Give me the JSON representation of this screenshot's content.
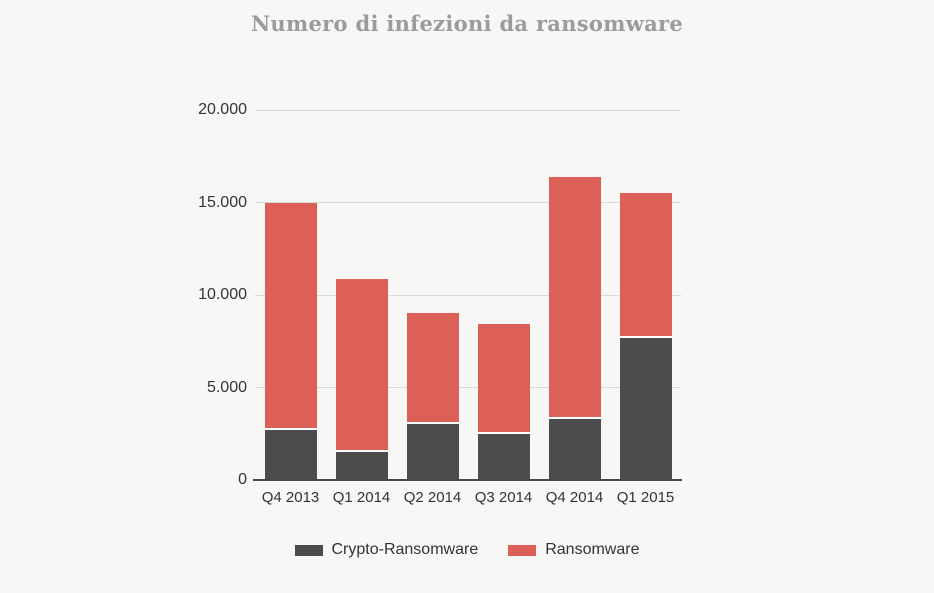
{
  "chart_data": {
    "type": "bar",
    "stacked": true,
    "title": "Numero di infezioni da ransomware",
    "categories": [
      "Q4 2013",
      "Q1 2014",
      "Q2 2014",
      "Q3 2014",
      "Q4 2014",
      "Q1 2015"
    ],
    "series": [
      {
        "name": "Crypto-Ransomware",
        "color": "#4c4c4c",
        "values": [
          2700,
          1500,
          3050,
          2500,
          3300,
          7700
        ]
      },
      {
        "name": "Ransomware",
        "color": "#dd6058",
        "values": [
          12300,
          9350,
          6000,
          5950,
          13100,
          7800
        ]
      }
    ],
    "stack_totals": [
      15000,
      10850,
      9050,
      8450,
      16400,
      15500
    ],
    "ylim": [
      0,
      20000
    ],
    "yticks": [
      {
        "value": 20000,
        "label": "20.000"
      },
      {
        "value": 15000,
        "label": "15.000"
      },
      {
        "value": 10000,
        "label": "10.000"
      },
      {
        "value": 5000,
        "label": "5.000"
      },
      {
        "value": 0,
        "label": "0"
      }
    ],
    "grid": true,
    "legend_position": "bottom",
    "colors": {
      "background": "#f7f7f6",
      "gridline": "#d9d9d8",
      "axis_line": "#474747",
      "tick_label": "#333333",
      "title": "#9b9b9b",
      "segment_divider": "#ffffff"
    }
  }
}
